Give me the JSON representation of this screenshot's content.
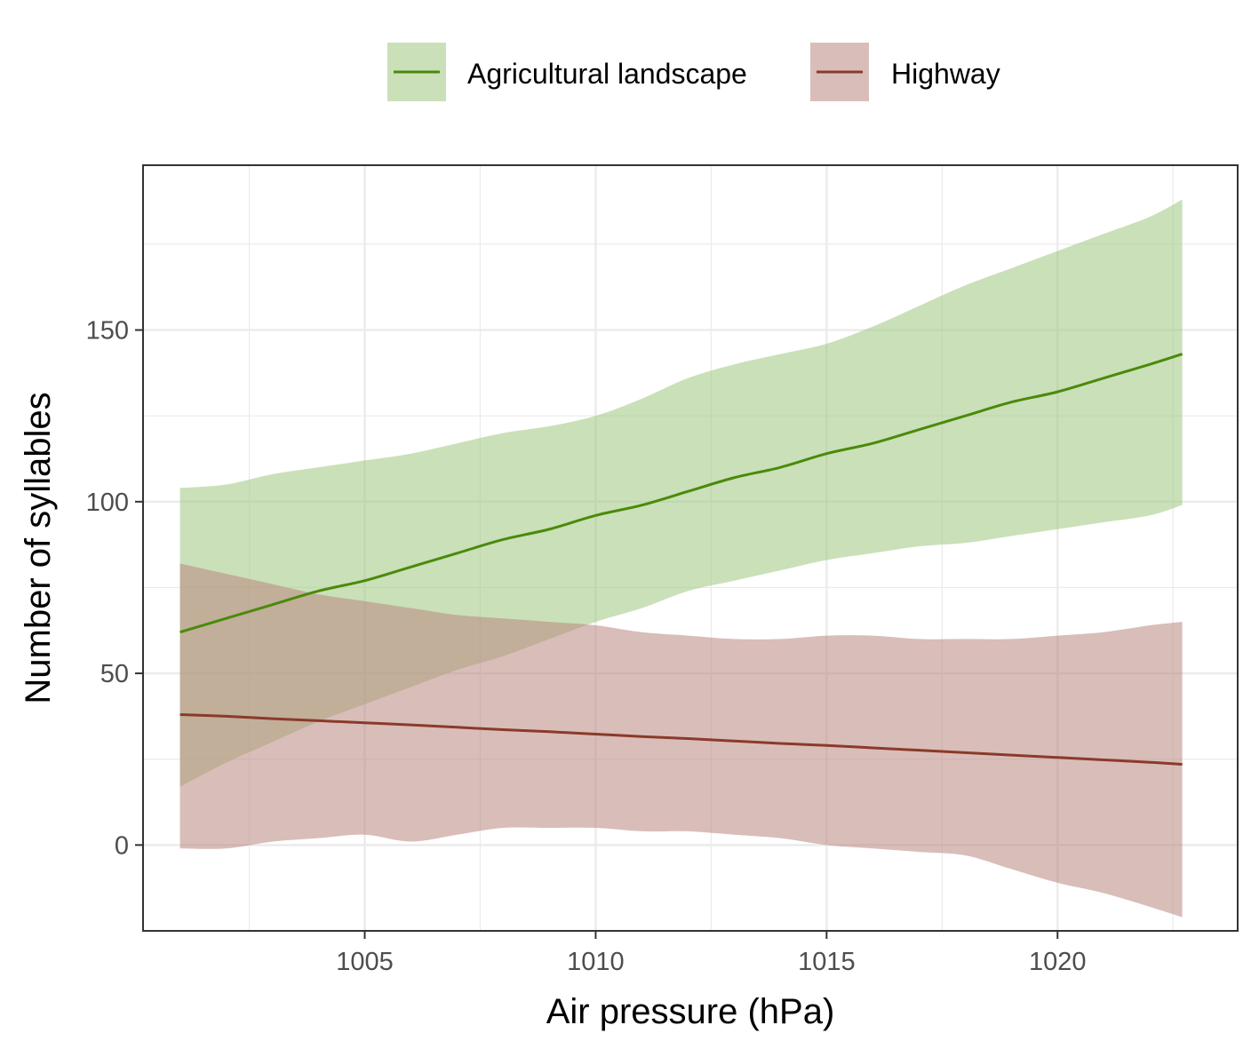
{
  "chart_data": {
    "type": "line",
    "xlabel": "Air pressure (hPa)",
    "ylabel": "Number of syllables",
    "xlim": [
      1000.2,
      1023.9
    ],
    "ylim": [
      -25,
      198
    ],
    "x_ticks": [
      1005,
      1010,
      1015,
      1020
    ],
    "y_ticks": [
      0,
      50,
      100,
      150
    ],
    "grid": true,
    "legend_position": "top",
    "series": [
      {
        "name": "Agricultural landscape",
        "color": "#4a8a0a",
        "band_color": "#9fc67f",
        "x": [
          1001,
          1002,
          1003,
          1004,
          1005,
          1006,
          1007,
          1008,
          1009,
          1010,
          1011,
          1012,
          1013,
          1014,
          1015,
          1016,
          1017,
          1018,
          1019,
          1020,
          1021,
          1022,
          1022.7
        ],
        "fit": [
          62,
          66,
          70,
          74,
          77,
          81,
          85,
          89,
          92,
          96,
          99,
          103,
          107,
          110,
          114,
          117,
          121,
          125,
          129,
          132,
          136,
          140,
          143
        ],
        "lower": [
          17,
          24,
          30,
          36,
          41,
          46,
          51,
          55,
          60,
          65,
          69,
          74,
          77,
          80,
          83,
          85,
          87,
          88,
          90,
          92,
          94,
          96,
          99
        ],
        "upper": [
          104,
          105,
          108,
          110,
          112,
          114,
          117,
          120,
          122,
          125,
          130,
          136,
          140,
          143,
          146,
          151,
          157,
          163,
          168,
          173,
          178,
          183,
          188
        ]
      },
      {
        "name": "Highway",
        "color": "#8b3a2a",
        "band_color": "#b98780",
        "x": [
          1001,
          1002,
          1003,
          1004,
          1005,
          1006,
          1007,
          1008,
          1009,
          1010,
          1011,
          1012,
          1013,
          1014,
          1015,
          1016,
          1017,
          1018,
          1019,
          1020,
          1021,
          1022,
          1022.7
        ],
        "fit": [
          38,
          37.5,
          36.8,
          36.2,
          35.6,
          35,
          34.3,
          33.6,
          33,
          32.3,
          31.6,
          31,
          30.3,
          29.6,
          29,
          28.3,
          27.6,
          26.9,
          26.2,
          25.5,
          24.8,
          24.1,
          23.5
        ],
        "lower": [
          -1,
          -1,
          1,
          2,
          3,
          1,
          3,
          5,
          5,
          5,
          4,
          4,
          3,
          2,
          0,
          -1,
          -2,
          -3,
          -7,
          -11,
          -14,
          -18,
          -21
        ],
        "upper": [
          82,
          79,
          76,
          73,
          71,
          69,
          67,
          66,
          65,
          64,
          62,
          61,
          60,
          60,
          61,
          61,
          60,
          60,
          60,
          61,
          62,
          64,
          65
        ]
      }
    ]
  }
}
